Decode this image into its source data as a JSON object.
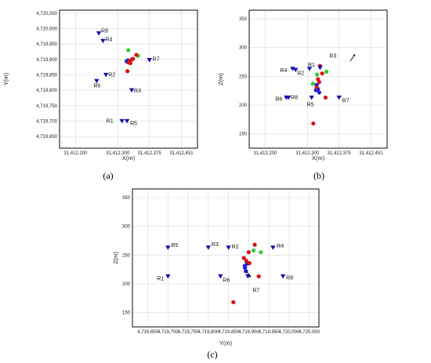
{
  "chart_data": [
    {
      "type": "scatter",
      "panel_label": "(a)",
      "xlabel": "X(m)",
      "ylabel": "Y(m)",
      "xlim": [
        31412162,
        31412489
      ],
      "ylim": [
        4719612,
        4720060
      ],
      "xticks": [
        31412200,
        31412300,
        31412375,
        31412451
      ],
      "xtick_labels": [
        "31,412,200",
        "31,412,300",
        "31,412,375",
        "31,412,451"
      ],
      "yticks": [
        4719650,
        4719700,
        4719750,
        4719800,
        4719850,
        4719900,
        4719950,
        4720000,
        4720050
      ],
      "ytick_labels": [
        "4,719,650",
        "4,719,700",
        "4,719,750",
        "4,719,800",
        "4,719,850",
        "4,719,900",
        "4,719,950",
        "4,720,000",
        "4,720,050"
      ],
      "grid": true,
      "receivers": [
        {
          "label": "R8",
          "x": 31412255,
          "y": 4719985
        },
        {
          "label": "R4",
          "x": 31412265,
          "y": 4719960
        },
        {
          "label": "R7",
          "x": 31412375,
          "y": 4719898
        },
        {
          "label": "R2",
          "x": 31412272,
          "y": 4719850
        },
        {
          "label": "R6",
          "x": 31412250,
          "y": 4719830
        },
        {
          "label": "R3",
          "x": 31412333,
          "y": 4719800
        },
        {
          "label": "R1",
          "x": 31412310,
          "y": 4719700
        },
        {
          "label": "R5",
          "x": 31412322,
          "y": 4719700
        }
      ],
      "events": [
        {
          "x": 31412320,
          "y": 4719895,
          "color": "green"
        },
        {
          "x": 31412325,
          "y": 4719930,
          "color": "green"
        },
        {
          "x": 31412348,
          "y": 4719912,
          "color": "green"
        },
        {
          "x": 31412324,
          "y": 4719897,
          "color": "blue"
        },
        {
          "x": 31412327,
          "y": 4719891,
          "color": "blue"
        },
        {
          "x": 31412322,
          "y": 4719893,
          "color": "blue"
        },
        {
          "x": 31412326,
          "y": 4719890,
          "color": "red"
        },
        {
          "x": 31412330,
          "y": 4719888,
          "color": "red"
        },
        {
          "x": 31412333,
          "y": 4719900,
          "color": "red"
        },
        {
          "x": 31412336,
          "y": 4719902,
          "color": "red"
        },
        {
          "x": 31412344,
          "y": 4719915,
          "color": "red"
        },
        {
          "x": 31412323,
          "y": 4719862,
          "color": "red"
        },
        {
          "x": 31412328,
          "y": 4719894,
          "color": "red"
        }
      ]
    },
    {
      "type": "scatter",
      "panel_label": "(b)",
      "xlabel": "X(m)",
      "ylabel": "Z(m)",
      "xlim": [
        31412162,
        31412489
      ],
      "ylim": [
        125,
        365
      ],
      "xticks": [
        31412200,
        31412300,
        31412375,
        31412451
      ],
      "xtick_labels": [
        "31,412,200",
        "31,412,300",
        "31,412,375",
        "31,412,451"
      ],
      "yticks": [
        150,
        200,
        250,
        300,
        350
      ],
      "ytick_labels": [
        "150",
        "200",
        "250",
        "300",
        "350"
      ],
      "grid": true,
      "receivers": [
        {
          "label": "R4",
          "x": 31412265,
          "y": 263
        },
        {
          "label": "R2",
          "x": 31412272,
          "y": 261
        },
        {
          "label": "R1",
          "x": 31412305,
          "y": 263
        },
        {
          "label": "R3",
          "x": 31412330,
          "y": 265
        },
        {
          "label": "R6",
          "x": 31412250,
          "y": 213
        },
        {
          "label": "R8",
          "x": 31412255,
          "y": 213
        },
        {
          "label": "R5",
          "x": 31412310,
          "y": 213
        },
        {
          "label": "R7",
          "x": 31412375,
          "y": 213
        }
      ],
      "events": [
        {
          "x": 31412323,
          "y": 253,
          "color": "green"
        },
        {
          "x": 31412345,
          "y": 258,
          "color": "green"
        },
        {
          "x": 31412313,
          "y": 237,
          "color": "green"
        },
        {
          "x": 31412322,
          "y": 235,
          "color": "blue"
        },
        {
          "x": 31412325,
          "y": 228,
          "color": "blue"
        },
        {
          "x": 31412328,
          "y": 222,
          "color": "blue"
        },
        {
          "x": 31412320,
          "y": 226,
          "color": "blue"
        },
        {
          "x": 31412330,
          "y": 268,
          "color": "red"
        },
        {
          "x": 31412335,
          "y": 255,
          "color": "red"
        },
        {
          "x": 31412325,
          "y": 245,
          "color": "red"
        },
        {
          "x": 31412328,
          "y": 240,
          "color": "red"
        },
        {
          "x": 31412322,
          "y": 231,
          "color": "red"
        },
        {
          "x": 31412343,
          "y": 213,
          "color": "red"
        },
        {
          "x": 31412314,
          "y": 168,
          "color": "red"
        }
      ]
    },
    {
      "type": "scatter",
      "panel_label": "(c)",
      "xlabel": "Y(m)",
      "ylabel": "Z(m)",
      "xlim": [
        4719612,
        4720074
      ],
      "ylim": [
        125,
        365
      ],
      "xticks": [
        4719650,
        4719700,
        4719750,
        4719800,
        4719850,
        4719900,
        4719950,
        4720000,
        4720050
      ],
      "xtick_labels": [
        "4,719,650",
        "4,719,700",
        "4,719,750",
        "4,719,800",
        "4,719,850",
        "4,719,900",
        "4,719,950",
        "4,720,000",
        "4,720,050"
      ],
      "yticks": [
        150,
        200,
        250,
        300,
        350
      ],
      "ytick_labels": [
        "150",
        "200",
        "250",
        "300",
        "350"
      ],
      "grid": true,
      "receivers": [
        {
          "label": "R5",
          "x": 4719700,
          "y": 263
        },
        {
          "label": "R3",
          "x": 4719800,
          "y": 263
        },
        {
          "label": "R2",
          "x": 4719850,
          "y": 263
        },
        {
          "label": "R4",
          "x": 4719960,
          "y": 263
        },
        {
          "label": "R1",
          "x": 4719700,
          "y": 213
        },
        {
          "label": "R6",
          "x": 4719830,
          "y": 213
        },
        {
          "label": "R8",
          "x": 4719985,
          "y": 213
        },
        {
          "label": "R7",
          "x": 4719898,
          "y": 213
        }
      ],
      "events": [
        {
          "x": 4719930,
          "y": 255,
          "color": "green"
        },
        {
          "x": 4719912,
          "y": 258,
          "color": "green"
        },
        {
          "x": 4719895,
          "y": 237,
          "color": "green"
        },
        {
          "x": 4719897,
          "y": 235,
          "color": "blue"
        },
        {
          "x": 4719891,
          "y": 228,
          "color": "blue"
        },
        {
          "x": 4719893,
          "y": 222,
          "color": "blue"
        },
        {
          "x": 4719890,
          "y": 231,
          "color": "blue"
        },
        {
          "x": 4719915,
          "y": 268,
          "color": "red"
        },
        {
          "x": 4719900,
          "y": 255,
          "color": "red"
        },
        {
          "x": 4719888,
          "y": 245,
          "color": "red"
        },
        {
          "x": 4719894,
          "y": 240,
          "color": "red"
        },
        {
          "x": 4719902,
          "y": 236,
          "color": "red"
        },
        {
          "x": 4719862,
          "y": 168,
          "color": "red"
        },
        {
          "x": 4719925,
          "y": 213,
          "color": "red"
        }
      ]
    }
  ],
  "colors": {
    "receiver": "#1010b0",
    "green": "#33cc33",
    "blue": "#1d1de0",
    "red": "#dd1111"
  }
}
